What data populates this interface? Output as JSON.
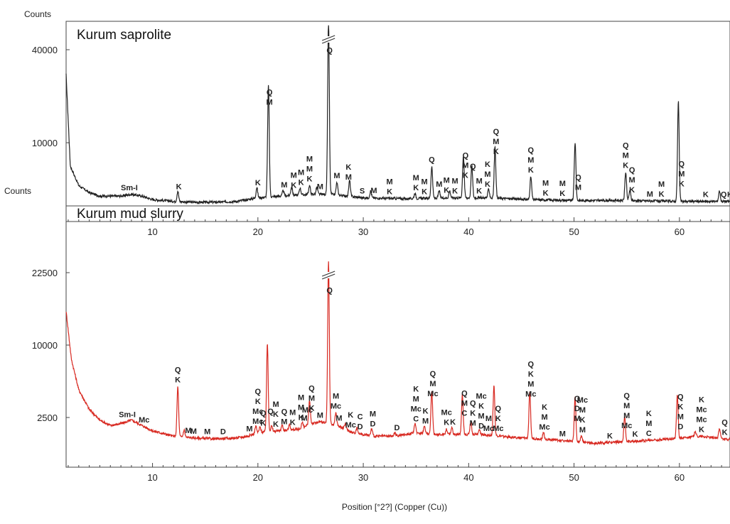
{
  "chart_data": [
    {
      "type": "line",
      "title": "Kurum saprolite",
      "ylabel": "Counts",
      "xlabel": "Position [°2?] (Copper (Cu))",
      "color": "#222222",
      "xlim": [
        1.8,
        64.8
      ],
      "ytick_labels": [
        {
          "value": 40000,
          "label": "40000"
        },
        {
          "value": 10000,
          "label": "10000"
        }
      ],
      "xticks": [
        10,
        20,
        30,
        40,
        50,
        60
      ],
      "xtick_labels": [
        "10",
        "20",
        "30",
        "40",
        "50",
        "60"
      ],
      "baseline": [
        [
          1.8,
          0.77
        ],
        [
          2.2,
          0.25
        ],
        [
          3,
          0.14
        ],
        [
          4,
          0.1
        ],
        [
          5,
          0.08
        ],
        [
          7,
          0.08
        ],
        [
          8,
          0.09
        ],
        [
          9,
          0.08
        ],
        [
          10,
          0.06
        ],
        [
          12,
          0.05
        ],
        [
          14,
          0.045
        ],
        [
          16,
          0.045
        ],
        [
          18,
          0.05
        ],
        [
          20,
          0.07
        ],
        [
          22,
          0.08
        ],
        [
          25,
          0.09
        ],
        [
          27,
          0.09
        ],
        [
          30,
          0.07
        ],
        [
          34,
          0.065
        ],
        [
          38,
          0.07
        ],
        [
          42,
          0.07
        ],
        [
          46,
          0.06
        ],
        [
          50,
          0.055
        ],
        [
          55,
          0.055
        ],
        [
          60,
          0.05
        ],
        [
          64.8,
          0.05
        ]
      ],
      "peaks": [
        [
          12.4,
          0.06
        ],
        [
          19.9,
          0.06
        ],
        [
          21.0,
          0.64
        ],
        [
          22.4,
          0.03
        ],
        [
          23.2,
          0.05
        ],
        [
          24.0,
          0.04
        ],
        [
          24.9,
          0.05
        ],
        [
          25.6,
          0.04
        ],
        [
          26.7,
          1.0
        ],
        [
          27.5,
          0.07
        ],
        [
          28.7,
          0.09
        ],
        [
          30.7,
          0.04
        ],
        [
          34.9,
          0.03
        ],
        [
          36.5,
          0.18
        ],
        [
          37.2,
          0.04
        ],
        [
          38.2,
          0.04
        ],
        [
          39.5,
          0.24
        ],
        [
          40.3,
          0.18
        ],
        [
          41.9,
          0.05
        ],
        [
          42.5,
          0.29
        ],
        [
          45.9,
          0.13
        ],
        [
          50.1,
          0.33
        ],
        [
          54.9,
          0.16
        ],
        [
          55.3,
          0.06
        ],
        [
          59.9,
          0.57
        ],
        [
          63.8,
          0.06
        ]
      ],
      "peak_labels": [
        {
          "x": 7.8,
          "lines": [
            "Sm-I"
          ]
        },
        {
          "x": 12.5,
          "lines": [
            "K"
          ]
        },
        {
          "x": 20.0,
          "lines": [
            "K"
          ]
        },
        {
          "x": 21.1,
          "lines": [
            "Q",
            "M"
          ]
        },
        {
          "x": 22.5,
          "lines": [
            "M"
          ]
        },
        {
          "x": 23.4,
          "lines": [
            "M",
            "K"
          ]
        },
        {
          "x": 24.1,
          "lines": [
            "M",
            "K"
          ]
        },
        {
          "x": 24.9,
          "lines": [
            "M",
            "M",
            "K"
          ]
        },
        {
          "x": 25.9,
          "lines": [
            "M"
          ]
        },
        {
          "x": 26.8,
          "lines": [
            "Q"
          ]
        },
        {
          "x": 27.5,
          "lines": [
            "M"
          ]
        },
        {
          "x": 28.6,
          "lines": [
            "K",
            "M"
          ]
        },
        {
          "x": 29.9,
          "lines": [
            "S"
          ]
        },
        {
          "x": 31.0,
          "lines": [
            "M"
          ]
        },
        {
          "x": 32.5,
          "lines": [
            "M",
            "K"
          ]
        },
        {
          "x": 35.0,
          "lines": [
            "M",
            "K"
          ]
        },
        {
          "x": 35.8,
          "lines": [
            "M",
            "K"
          ]
        },
        {
          "x": 36.5,
          "lines": [
            "Q"
          ]
        },
        {
          "x": 37.2,
          "lines": [
            "M"
          ]
        },
        {
          "x": 37.9,
          "lines": [
            "M",
            "K"
          ]
        },
        {
          "x": 38.7,
          "lines": [
            "M",
            "K"
          ]
        },
        {
          "x": 39.7,
          "lines": [
            "Q",
            "M",
            "K"
          ]
        },
        {
          "x": 40.4,
          "lines": [
            "Q"
          ]
        },
        {
          "x": 41.0,
          "lines": [
            "M",
            "K"
          ]
        },
        {
          "x": 41.8,
          "lines": [
            "K",
            "M",
            "K"
          ]
        },
        {
          "x": 42.6,
          "lines": [
            "Q",
            "M",
            "K"
          ]
        },
        {
          "x": 45.9,
          "lines": [
            "Q",
            "M",
            "K"
          ]
        },
        {
          "x": 47.3,
          "lines": [
            "M",
            "K"
          ]
        },
        {
          "x": 48.9,
          "lines": [
            "M",
            "K"
          ]
        },
        {
          "x": 50.4,
          "lines": [
            "Q",
            "M"
          ]
        },
        {
          "x": 54.9,
          "lines": [
            "Q",
            "M",
            "K"
          ]
        },
        {
          "x": 55.5,
          "lines": [
            "Q",
            "M",
            "K"
          ]
        },
        {
          "x": 57.2,
          "lines": [
            "M"
          ]
        },
        {
          "x": 58.3,
          "lines": [
            "M",
            "K"
          ]
        },
        {
          "x": 60.2,
          "lines": [
            "Q",
            "M",
            "K"
          ]
        },
        {
          "x": 62.5,
          "lines": [
            "K"
          ]
        },
        {
          "x": 64.2,
          "lines": [
            "Q"
          ]
        },
        {
          "x": 64.8,
          "lines": [
            "K"
          ]
        }
      ]
    },
    {
      "type": "line",
      "title": "Kurum mud slurry",
      "ylabel": "Counts",
      "xlabel": "Position [°2?] (Copper (Cu))",
      "color": "#d82a22",
      "xlim": [
        1.8,
        64.8
      ],
      "ytick_labels": [
        {
          "value": 22500,
          "label": "22500"
        },
        {
          "value": 10000,
          "label": "10000"
        },
        {
          "value": 2500,
          "label": "2500"
        }
      ],
      "xticks": [
        10,
        20,
        30,
        40,
        50,
        60
      ],
      "xtick_labels": [
        "10",
        "20",
        "30",
        "40",
        "50",
        "60"
      ],
      "baseline": [
        [
          1.8,
          0.77
        ],
        [
          2.3,
          0.5
        ],
        [
          3,
          0.33
        ],
        [
          4,
          0.22
        ],
        [
          5,
          0.16
        ],
        [
          6,
          0.13
        ],
        [
          7,
          0.14
        ],
        [
          8,
          0.16
        ],
        [
          9,
          0.13
        ],
        [
          10,
          0.1
        ],
        [
          12,
          0.07
        ],
        [
          14,
          0.06
        ],
        [
          16,
          0.055
        ],
        [
          18,
          0.06
        ],
        [
          19,
          0.07
        ],
        [
          20,
          0.09
        ],
        [
          22,
          0.1
        ],
        [
          24,
          0.11
        ],
        [
          25,
          0.14
        ],
        [
          26,
          0.15
        ],
        [
          27.5,
          0.13
        ],
        [
          29,
          0.09
        ],
        [
          31,
          0.07
        ],
        [
          33,
          0.07
        ],
        [
          35,
          0.09
        ],
        [
          37,
          0.08
        ],
        [
          39,
          0.08
        ],
        [
          41,
          0.08
        ],
        [
          43,
          0.07
        ],
        [
          45,
          0.06
        ],
        [
          48,
          0.05
        ],
        [
          52,
          0.03
        ],
        [
          55,
          0.04
        ],
        [
          58,
          0.05
        ],
        [
          60,
          0.06
        ],
        [
          62,
          0.07
        ],
        [
          64.8,
          0.05
        ]
      ],
      "peaks": [
        [
          12.4,
          0.28
        ],
        [
          13.0,
          0.04
        ],
        [
          19.8,
          0.04
        ],
        [
          20.2,
          0.03
        ],
        [
          20.9,
          0.49
        ],
        [
          21.3,
          0.03
        ],
        [
          22.3,
          0.03
        ],
        [
          23.0,
          0.03
        ],
        [
          24.2,
          0.03
        ],
        [
          24.9,
          0.13
        ],
        [
          26.7,
          0.91
        ],
        [
          27.4,
          0.07
        ],
        [
          28.3,
          0.03
        ],
        [
          29.4,
          0.03
        ],
        [
          30.8,
          0.04
        ],
        [
          33.0,
          0.02
        ],
        [
          34.9,
          0.05
        ],
        [
          35.8,
          0.04
        ],
        [
          36.5,
          0.24
        ],
        [
          37.9,
          0.03
        ],
        [
          38.4,
          0.04
        ],
        [
          39.4,
          0.22
        ],
        [
          40.2,
          0.07
        ],
        [
          41.0,
          0.03
        ],
        [
          42.4,
          0.28
        ],
        [
          45.8,
          0.27
        ],
        [
          47.1,
          0.04
        ],
        [
          50.1,
          0.25
        ],
        [
          50.7,
          0.04
        ],
        [
          54.8,
          0.14
        ],
        [
          59.8,
          0.24
        ],
        [
          61.5,
          0.03
        ],
        [
          63.8,
          0.06
        ]
      ],
      "peak_labels": [
        {
          "x": 7.6,
          "lines": [
            "Sm-I"
          ]
        },
        {
          "x": 9.2,
          "lines": [
            "Mc"
          ]
        },
        {
          "x": 12.4,
          "lines": [
            "Q",
            "K"
          ]
        },
        {
          "x": 13.4,
          "lines": [
            "M"
          ]
        },
        {
          "x": 13.9,
          "lines": [
            "M"
          ]
        },
        {
          "x": 15.2,
          "lines": [
            "M"
          ]
        },
        {
          "x": 16.7,
          "lines": [
            "D"
          ]
        },
        {
          "x": 19.2,
          "lines": [
            "M"
          ]
        },
        {
          "x": 20.0,
          "lines": [
            "Q",
            "K",
            "Mc",
            "Mc"
          ]
        },
        {
          "x": 20.5,
          "lines": [
            "Q",
            "K"
          ]
        },
        {
          "x": 21.2,
          "lines": [
            "Q"
          ]
        },
        {
          "x": 21.7,
          "lines": [
            "M",
            "K",
            "K"
          ]
        },
        {
          "x": 22.5,
          "lines": [
            "Q",
            "M"
          ]
        },
        {
          "x": 23.3,
          "lines": [
            "M",
            "K"
          ]
        },
        {
          "x": 24.1,
          "lines": [
            "M",
            "M",
            "K"
          ]
        },
        {
          "x": 24.7,
          "lines": [
            "Mc"
          ]
        },
        {
          "x": 25.1,
          "lines": [
            "Q",
            "M",
            "K"
          ]
        },
        {
          "x": 25.9,
          "lines": [
            "M"
          ]
        },
        {
          "x": 26.8,
          "lines": [
            "Q"
          ]
        },
        {
          "x": 27.4,
          "lines": [
            "M",
            "Mc"
          ]
        },
        {
          "x": 24.4,
          "lines": [
            "M"
          ]
        },
        {
          "x": 27.7,
          "lines": [
            "M"
          ]
        },
        {
          "x": 28.8,
          "lines": [
            "K",
            "Mc"
          ]
        },
        {
          "x": 29.7,
          "lines": [
            "C",
            "D"
          ]
        },
        {
          "x": 30.9,
          "lines": [
            "M",
            "D"
          ]
        },
        {
          "x": 33.2,
          "lines": [
            "D"
          ]
        },
        {
          "x": 35.0,
          "lines": [
            "K",
            "M",
            "Mc",
            "C"
          ]
        },
        {
          "x": 35.9,
          "lines": [
            "K",
            "M"
          ]
        },
        {
          "x": 36.6,
          "lines": [
            "Q",
            "M",
            "Mc"
          ]
        },
        {
          "x": 37.9,
          "lines": [
            "Mc",
            "K"
          ]
        },
        {
          "x": 38.5,
          "lines": [
            "K"
          ]
        },
        {
          "x": 39.6,
          "lines": [
            "Q",
            "M",
            "C"
          ]
        },
        {
          "x": 40.4,
          "lines": [
            "Q",
            "K",
            "M"
          ]
        },
        {
          "x": 41.2,
          "lines": [
            "Mc",
            "K",
            "M",
            "D"
          ]
        },
        {
          "x": 41.9,
          "lines": [
            "M",
            "Mc"
          ]
        },
        {
          "x": 42.8,
          "lines": [
            "Q",
            "K",
            "Mc"
          ]
        },
        {
          "x": 45.9,
          "lines": [
            "Q",
            "K",
            "M",
            "Mc"
          ]
        },
        {
          "x": 47.2,
          "lines": [
            "K",
            "M",
            "Mc"
          ]
        },
        {
          "x": 48.9,
          "lines": [
            "M"
          ]
        },
        {
          "x": 50.3,
          "lines": [
            "Q",
            "D",
            "M"
          ]
        },
        {
          "x": 50.8,
          "lines": [
            "Mc",
            "M",
            "K",
            "M"
          ]
        },
        {
          "x": 53.4,
          "lines": [
            "K"
          ]
        },
        {
          "x": 55.0,
          "lines": [
            "Q",
            "M",
            "M",
            "Mc"
          ]
        },
        {
          "x": 55.8,
          "lines": [
            "K"
          ]
        },
        {
          "x": 57.1,
          "lines": [
            "K",
            "M",
            "C"
          ]
        },
        {
          "x": 60.1,
          "lines": [
            "Q",
            "K",
            "M",
            "D"
          ]
        },
        {
          "x": 62.1,
          "lines": [
            "K",
            "Mc",
            "Mc",
            "K"
          ]
        },
        {
          "x": 64.3,
          "lines": [
            "Q",
            "K"
          ]
        }
      ]
    }
  ]
}
